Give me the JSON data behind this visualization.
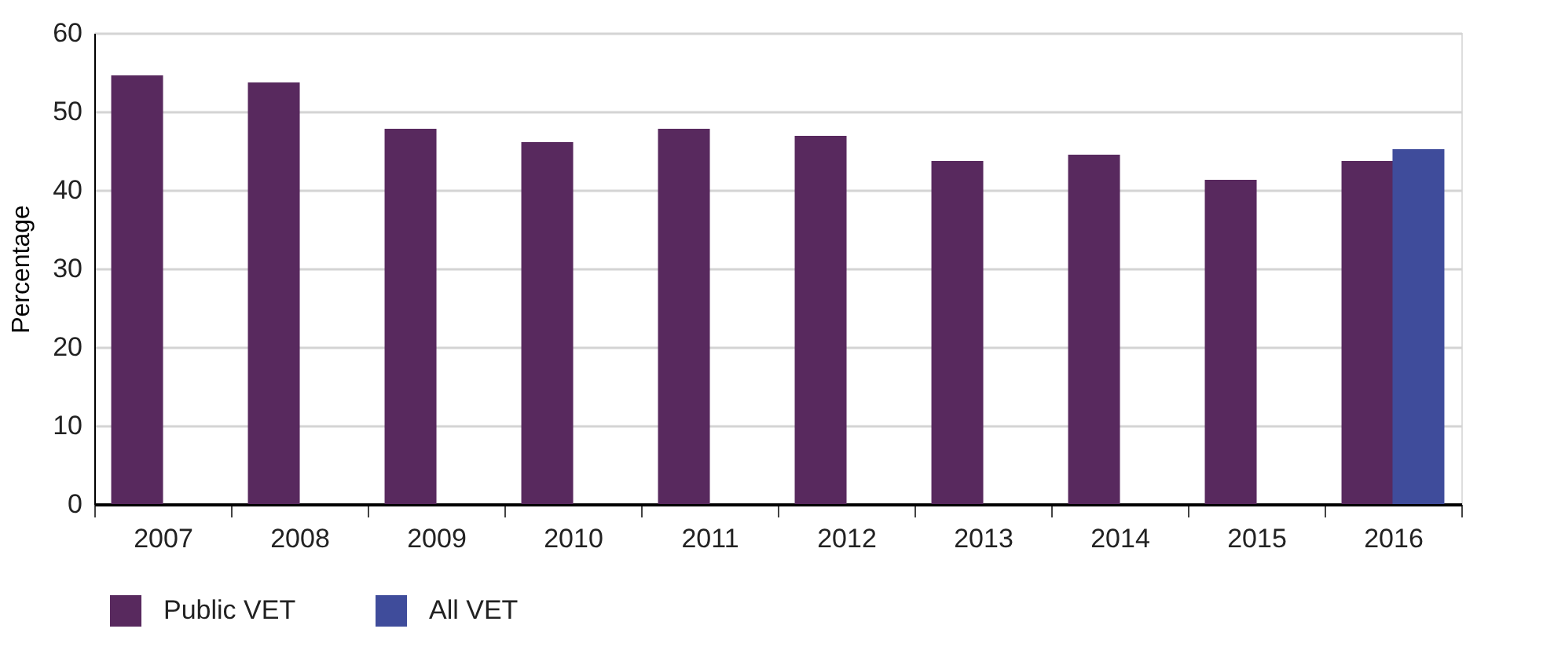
{
  "chart_data": {
    "type": "bar",
    "ylabel": "Percentage",
    "categories": [
      "2007",
      "2008",
      "2009",
      "2010",
      "2011",
      "2012",
      "2013",
      "2014",
      "2015",
      "2016"
    ],
    "series": [
      {
        "name": "Public VET",
        "color": "#58295e",
        "values": [
          54.6,
          53.7,
          47.8,
          46.1,
          47.8,
          46.9,
          43.7,
          44.5,
          41.3,
          43.7
        ]
      },
      {
        "name": "All VET",
        "color": "#3f4c9b",
        "values": [
          null,
          null,
          null,
          null,
          null,
          null,
          null,
          null,
          null,
          45.2
        ]
      }
    ],
    "ylim": [
      0,
      60
    ],
    "yticks": [
      0,
      10,
      20,
      30,
      40,
      50,
      60
    ],
    "grid": "y",
    "legend": "bottom"
  }
}
